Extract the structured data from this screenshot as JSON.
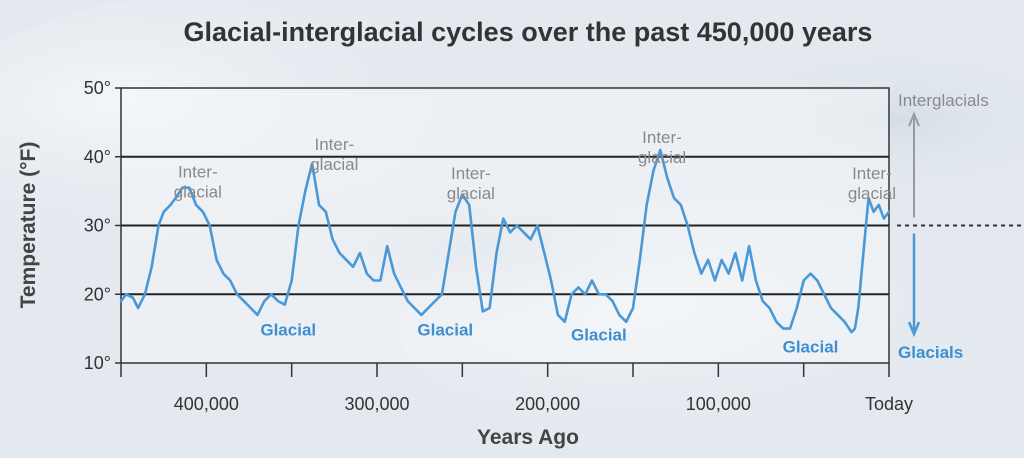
{
  "colors": {
    "background": "#e3e9ef",
    "plot_background": "#f4f6f8",
    "line": "#4a98d6",
    "glacial_text": "#3d8fd1",
    "interglacial_text": "#8a8a8a",
    "gridline": "#222222"
  },
  "chart_data": {
    "type": "line",
    "title": "Glacial-interglacial cycles over the past 450,000 years",
    "xlabel": "Years Ago",
    "ylabel": "Temperature (°F)",
    "x_reversed": true,
    "xlim": [
      450000,
      0
    ],
    "ylim": [
      10,
      50
    ],
    "x_ticks": [
      {
        "value": 400000,
        "label": "400,000"
      },
      {
        "value": 300000,
        "label": "300,000"
      },
      {
        "value": 200000,
        "label": "200,000"
      },
      {
        "value": 100000,
        "label": "100,000"
      },
      {
        "value": 0,
        "label": "Today"
      }
    ],
    "x_minor_ticks": [
      450000,
      350000,
      250000,
      150000,
      50000
    ],
    "y_ticks": [
      {
        "value": 10,
        "label": "10°"
      },
      {
        "value": 20,
        "label": "20°"
      },
      {
        "value": 30,
        "label": "30°"
      },
      {
        "value": 40,
        "label": "40°"
      },
      {
        "value": 50,
        "label": "50°"
      }
    ],
    "gridlines_y": [
      20,
      30,
      40
    ],
    "series": [
      {
        "x": [
          450000,
          447000,
          443000,
          440000,
          436000,
          432000,
          428000,
          425000,
          421000,
          418000,
          414000,
          410000,
          406000,
          402000,
          398000,
          394000,
          390000,
          386000,
          382000,
          378000,
          374000,
          370000,
          366000,
          362000,
          358000,
          354000,
          350000,
          346000,
          342000,
          338000,
          336000,
          334000,
          330000,
          326000,
          322000,
          318000,
          314000,
          310000,
          306000,
          302000,
          298000,
          294000,
          290000,
          286000,
          282000,
          278000,
          274000,
          270000,
          266000,
          262000,
          258000,
          254000,
          250000,
          246000,
          242000,
          238000,
          234000,
          230000,
          226000,
          222000,
          218000,
          214000,
          210000,
          206000,
          202000,
          198000,
          194000,
          190000,
          186000,
          182000,
          178000,
          174000,
          170000,
          166000,
          162000,
          158000,
          154000,
          150000,
          146000,
          142000,
          138000,
          134000,
          130000,
          126000,
          122000,
          118000,
          114000,
          110000,
          106000,
          102000,
          98000,
          94000,
          90000,
          86000,
          82000,
          78000,
          74000,
          70000,
          66000,
          62000,
          58000,
          54000,
          50000,
          46000,
          42000,
          38000,
          34000,
          30000,
          26000,
          22000,
          20000,
          18000,
          15000,
          12000,
          9000,
          6000,
          3000,
          0
        ],
        "y": [
          19,
          20,
          19.5,
          18,
          20,
          24,
          30,
          32,
          33,
          34,
          35.5,
          35.5,
          33,
          32,
          30,
          25,
          23,
          22,
          20,
          19,
          18,
          17,
          19,
          20,
          19,
          18.5,
          22,
          30,
          35,
          39,
          36,
          33,
          32,
          28,
          26,
          25,
          24,
          26,
          23,
          22,
          22,
          27,
          23,
          21,
          19,
          18,
          17,
          18,
          19,
          20,
          26,
          32,
          34.5,
          33,
          24,
          17.5,
          18,
          26,
          31,
          29,
          30,
          29,
          28,
          30,
          26,
          22,
          17,
          16,
          20,
          21,
          20,
          22,
          20,
          20,
          19,
          17,
          16,
          18,
          25,
          33,
          38,
          41,
          37,
          34,
          33,
          30,
          26,
          23,
          25,
          22,
          25,
          23,
          26,
          22,
          27,
          22,
          19,
          18,
          16,
          15,
          15,
          18,
          22,
          23,
          22,
          20,
          18,
          17,
          16,
          14.5,
          15,
          18,
          26,
          34,
          32,
          33,
          31,
          32
        ]
      }
    ],
    "annotations": [
      {
        "lines": [
          "Inter-",
          "glacial"
        ],
        "type": "interglacial",
        "x": 405000,
        "y": 37
      },
      {
        "lines": [
          "Inter-",
          "glacial"
        ],
        "type": "interglacial",
        "x": 325000,
        "y": 41
      },
      {
        "lines": [
          "Inter-",
          "glacial"
        ],
        "type": "interglacial",
        "x": 245000,
        "y": 36.8
      },
      {
        "lines": [
          "Inter-",
          "glacial"
        ],
        "type": "interglacial",
        "x": 133000,
        "y": 42
      },
      {
        "lines": [
          "Inter-",
          "glacial"
        ],
        "type": "interglacial",
        "x": 10000,
        "y": 36.8
      },
      {
        "lines": [
          "Glacial"
        ],
        "type": "glacial",
        "x": 352000,
        "y": 14
      },
      {
        "lines": [
          "Glacial"
        ],
        "type": "glacial",
        "x": 260000,
        "y": 14
      },
      {
        "lines": [
          "Glacial"
        ],
        "type": "glacial",
        "x": 170000,
        "y": 13.3
      },
      {
        "lines": [
          "Glacial"
        ],
        "type": "glacial",
        "x": 46000,
        "y": 11.5
      }
    ],
    "side_labels": {
      "top": "Interglacials",
      "bottom": "Glacials"
    },
    "reference_level": 30
  }
}
